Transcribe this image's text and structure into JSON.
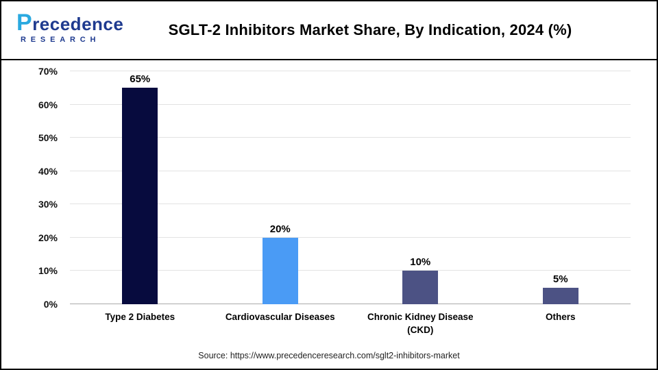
{
  "page": {
    "title": "SGLT-2 Inhibitors Market Share, By Indication, 2024 (%)",
    "source": "Source: https://www.precedenceresearch.com/sglt2-inhibitors-market"
  },
  "logo": {
    "word": "Precedence",
    "sub": "RESEARCH"
  },
  "chart_data": {
    "type": "bar",
    "title": "SGLT-2 Inhibitors Market Share, By Indication, 2024 (%)",
    "categories": [
      "Type 2 Diabetes",
      "Cardiovascular Diseases",
      "Chronic Kidney Disease (CKD)",
      "Others"
    ],
    "values": [
      65,
      20,
      10,
      5
    ],
    "value_labels": [
      "65%",
      "20%",
      "10%",
      "5%"
    ],
    "bar_colors": [
      "#070b3e",
      "#4a9bf5",
      "#4c5284",
      "#4c5284"
    ],
    "xlabel": "",
    "ylabel": "",
    "ylim": [
      0,
      70
    ],
    "ytick_step": 10,
    "ytick_labels": [
      "0%",
      "10%",
      "20%",
      "30%",
      "40%",
      "50%",
      "60%",
      "70%"
    ],
    "grid": true,
    "legend": false
  }
}
